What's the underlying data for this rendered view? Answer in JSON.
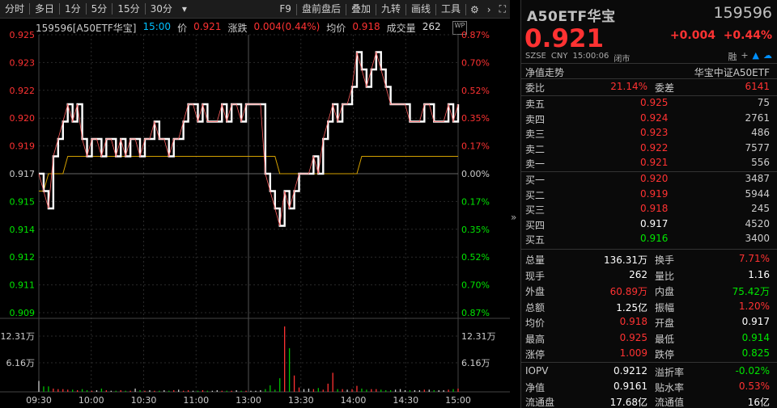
{
  "toolbar": {
    "left": [
      "分时",
      "多日",
      "1分",
      "5分",
      "15分",
      "30分",
      "▾"
    ],
    "right": [
      "F9",
      "盘前盘后",
      "叠加",
      "九转",
      "画线",
      "工具"
    ]
  },
  "info": {
    "code_name": "159596[A50ETF华宝]",
    "time": "15:00",
    "price_label": "价",
    "price": "0.921",
    "chg_label": "涨跌",
    "chg": "0.004(0.44%)",
    "avg_label": "均价",
    "avg": "0.918",
    "vol_label": "成交量",
    "vol": "262"
  },
  "axes": {
    "left_ticks": [
      "0.925",
      "0.923",
      "0.922",
      "0.920",
      "0.919",
      "0.917",
      "0.915",
      "0.914",
      "0.912",
      "0.911",
      "0.909"
    ],
    "right_ticks": [
      "0.87%",
      "0.70%",
      "0.52%",
      "0.35%",
      "0.17%",
      "0.00%",
      "0.17%",
      "0.35%",
      "0.52%",
      "0.70%",
      "0.87%"
    ],
    "vol_ticks": [
      "12.31万",
      "6.16万"
    ],
    "time_ticks": [
      "09:30",
      "10:00",
      "10:30",
      "11:00",
      "13:00",
      "13:30",
      "14:00",
      "14:30",
      "15:00"
    ]
  },
  "panel": {
    "title": "A50ETF华宝",
    "code": "159596",
    "price": "0.921",
    "change": "+0.004",
    "change_pct": "+0.44%",
    "meta": [
      "SZSE",
      "CNY",
      "15:00:06",
      "闭市"
    ],
    "trend_label": "净值走势",
    "index_name": "华宝中证A50ETF",
    "weibi_label": "委比",
    "weibi": "21.14%",
    "weicha_label": "委差",
    "weicha": "6141",
    "asks": [
      {
        "label": "卖五",
        "price": "0.925",
        "vol": "75"
      },
      {
        "label": "卖四",
        "price": "0.924",
        "vol": "2761"
      },
      {
        "label": "卖三",
        "price": "0.923",
        "vol": "486"
      },
      {
        "label": "卖二",
        "price": "0.922",
        "vol": "7577"
      },
      {
        "label": "卖一",
        "price": "0.921",
        "vol": "556"
      }
    ],
    "bids": [
      {
        "label": "买一",
        "price": "0.920",
        "vol": "3487"
      },
      {
        "label": "买二",
        "price": "0.919",
        "vol": "5944"
      },
      {
        "label": "买三",
        "price": "0.918",
        "vol": "245"
      },
      {
        "label": "买四",
        "price": "0.917",
        "vol": "4520"
      },
      {
        "label": "买五",
        "price": "0.916",
        "vol": "3400"
      }
    ],
    "stats": [
      {
        "l1": "总量",
        "v1": "136.31万",
        "l2": "换手",
        "v2": "7.71%"
      },
      {
        "l1": "现手",
        "v1": "262",
        "l2": "量比",
        "v2": "1.16"
      },
      {
        "l1": "外盘",
        "v1": "60.89万",
        "l2": "内盘",
        "v2": "75.42万"
      },
      {
        "l1": "总额",
        "v1": "1.25亿",
        "l2": "振幅",
        "v2": "1.20%"
      },
      {
        "l1": "均价",
        "v1": "0.918",
        "l2": "开盘",
        "v2": "0.917"
      },
      {
        "l1": "最高",
        "v1": "0.925",
        "l2": "最低",
        "v2": "0.914"
      },
      {
        "l1": "涨停",
        "v1": "1.009",
        "l2": "跌停",
        "v2": "0.825"
      }
    ],
    "fund": [
      {
        "l1": "IOPV",
        "v1": "0.9212",
        "l2": "溢折率",
        "v2": "-0.02%"
      },
      {
        "l1": "净值",
        "v1": "0.9161",
        "l2": "贴水率",
        "v2": "0.53%"
      },
      {
        "l1": "流通盘",
        "v1": "17.68亿",
        "l2": "流通值",
        "v2": "16亿"
      }
    ]
  },
  "chart_data": {
    "type": "line",
    "title": "",
    "ylim": [
      0.909,
      0.925
    ],
    "prev_close": 0.917,
    "series": [
      {
        "values": [
          0.917,
          0.916,
          0.915,
          0.918,
          0.919,
          0.92,
          0.921,
          0.92,
          0.921,
          0.919,
          0.918,
          0.919,
          0.919,
          0.918,
          0.919,
          0.919,
          0.918,
          0.919,
          0.918,
          0.919,
          0.919,
          0.918,
          0.919,
          0.919,
          0.92,
          0.919,
          0.919,
          0.918,
          0.919,
          0.919,
          0.92,
          0.921,
          0.921,
          0.92,
          0.921,
          0.92,
          0.92,
          0.92,
          0.921,
          0.92,
          0.921,
          0.921,
          0.92,
          0.921,
          0.921,
          0.921,
          0.921,
          0.917,
          0.916,
          0.915,
          0.914,
          0.916,
          0.915,
          0.916,
          0.917,
          0.917,
          0.917,
          0.918,
          0.917,
          0.919,
          0.92,
          0.921,
          0.92,
          0.921,
          0.921,
          0.922,
          0.924,
          0.923,
          0.922,
          0.923,
          0.924,
          0.923,
          0.922,
          0.921,
          0.921,
          0.921,
          0.921,
          0.92,
          0.92,
          0.92,
          0.921,
          0.921,
          0.92,
          0.92,
          0.92,
          0.921,
          0.92,
          0.921
        ]
      },
      {
        "values": [
          0.916,
          0.916,
          0.917,
          0.917,
          0.917,
          0.917,
          0.918,
          0.918,
          0.918,
          0.918,
          0.918,
          0.918,
          0.918,
          0.918,
          0.918,
          0.918,
          0.918,
          0.918,
          0.918,
          0.918,
          0.918,
          0.918,
          0.918,
          0.918,
          0.918,
          0.918,
          0.918,
          0.918,
          0.918,
          0.918,
          0.918,
          0.918,
          0.918,
          0.918,
          0.918,
          0.918,
          0.918,
          0.918,
          0.918,
          0.918,
          0.918,
          0.918,
          0.918,
          0.918,
          0.918,
          0.918,
          0.918,
          0.918,
          0.918,
          0.918,
          0.917,
          0.917,
          0.917,
          0.917,
          0.917,
          0.917,
          0.917,
          0.917,
          0.917,
          0.917,
          0.917,
          0.917,
          0.917,
          0.917,
          0.917,
          0.917,
          0.917,
          0.918,
          0.918,
          0.918,
          0.918,
          0.918,
          0.918,
          0.918,
          0.918,
          0.918,
          0.918,
          0.918,
          0.918,
          0.918,
          0.918,
          0.918,
          0.918,
          0.918,
          0.918,
          0.918,
          0.918,
          0.918
        ]
      }
    ],
    "volume": [
      2,
      1,
      1,
      0.6,
      0.5,
      0.5,
      0.4,
      0.4,
      0.3,
      0.5,
      0.3,
      0.2,
      0.3,
      0.6,
      0.3,
      0.2,
      0.2,
      0.3,
      0.2,
      0.2,
      0.6,
      0.3,
      0.2,
      0.3,
      0.2,
      0.2,
      0.3,
      0.2,
      0.3,
      0.4,
      0.2,
      0.3,
      0.2,
      0.2,
      0.3,
      0.2,
      0.2,
      0.3,
      0.2,
      0.2,
      0.2,
      0.3,
      0.2,
      0.2,
      0.2,
      0.2,
      0.3,
      0.5,
      1.2,
      0.4,
      2.5,
      12,
      8,
      3,
      0.8,
      0.5,
      0.6,
      0.5,
      0.7,
      0.4,
      1.5,
      3.5,
      0.5,
      0.5,
      0.4,
      0.5,
      1.1,
      0.6,
      0.4,
      0.5,
      0.5,
      0.4,
      0.3,
      0.3,
      0.4,
      0.5,
      0.3,
      0.3,
      0.3,
      0.3,
      0.4,
      0.4,
      0.3,
      0.3,
      0.3,
      0.4,
      0.5,
      0.6
    ],
    "vol_max": 12.31
  }
}
